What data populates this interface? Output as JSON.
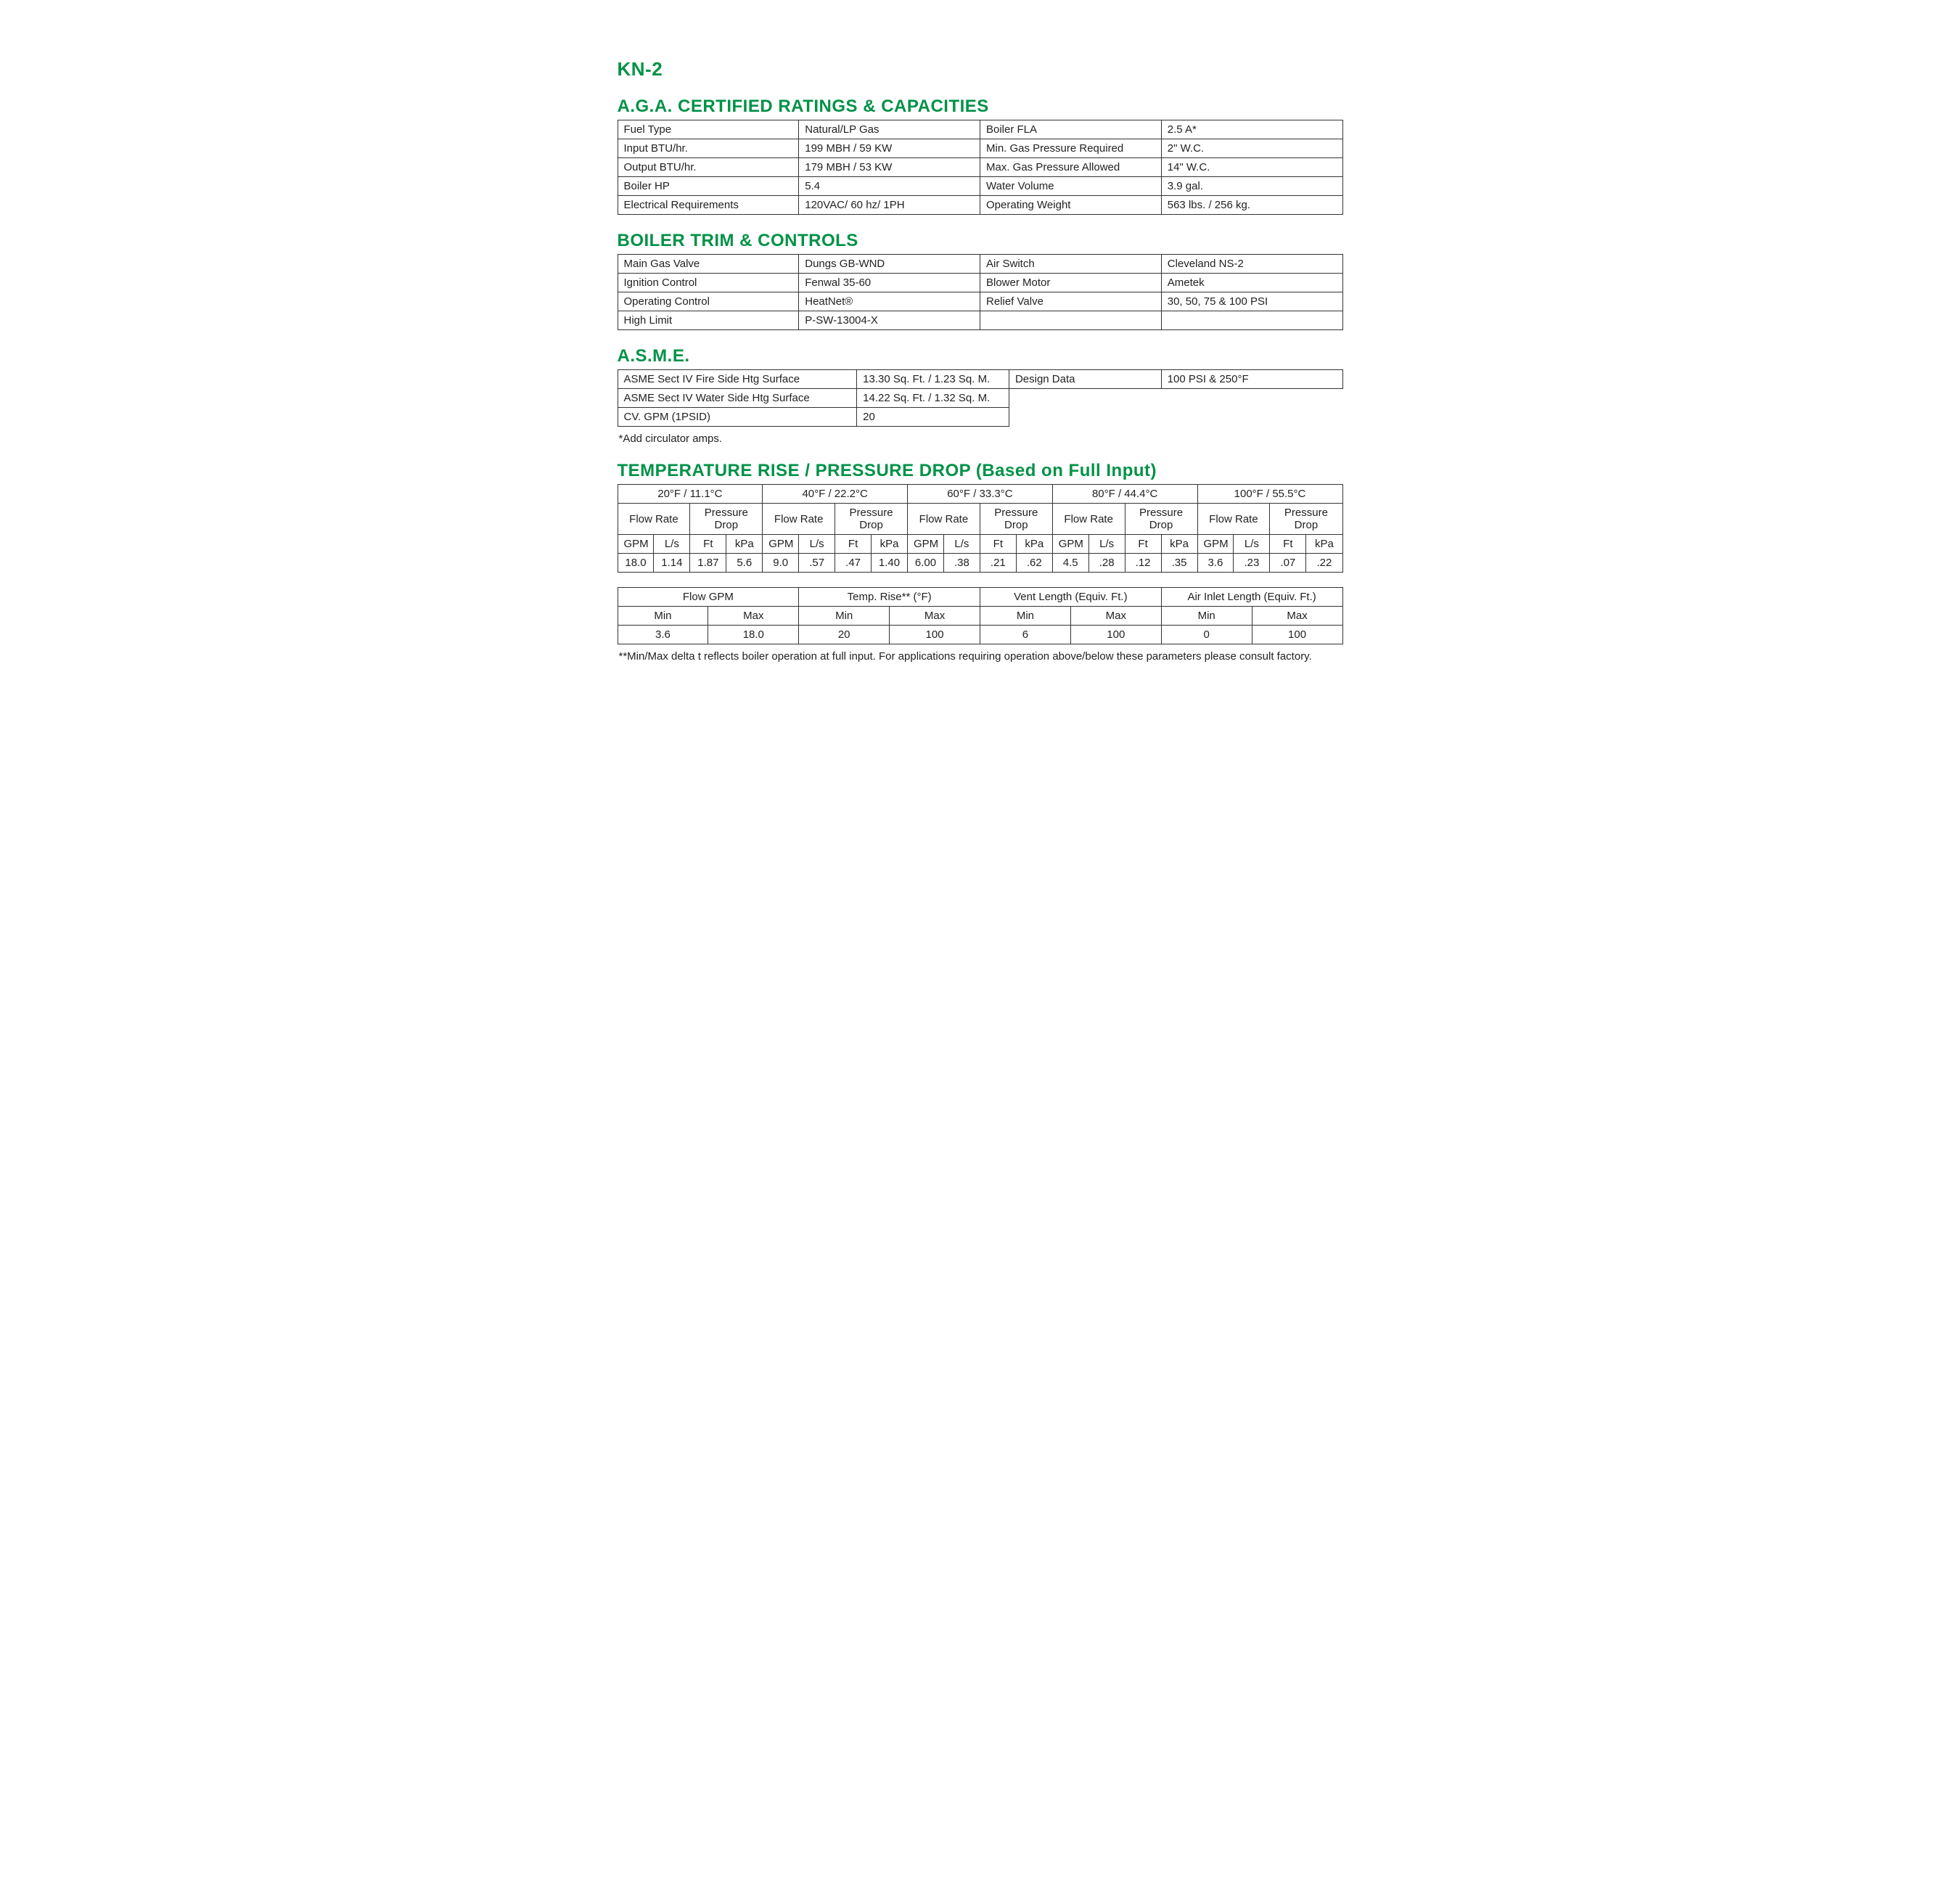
{
  "model": "KN-2",
  "sections": {
    "ratings": {
      "title": "A.G.A. CERTIFIED RATINGS & CAPACITIES",
      "rows": [
        [
          "Fuel Type",
          "Natural/LP Gas",
          "Boiler FLA",
          "2.5 A*"
        ],
        [
          "Input BTU/hr.",
          "199 MBH / 59 KW",
          "Min. Gas Pressure Required",
          "2\" W.C."
        ],
        [
          "Output BTU/hr.",
          "179 MBH / 53 KW",
          "Max. Gas Pressure Allowed",
          "14\" W.C."
        ],
        [
          "Boiler HP",
          "5.4",
          "Water Volume",
          "3.9 gal."
        ],
        [
          "Electrical Requirements",
          "120VAC/ 60 hz/ 1PH",
          "Operating Weight",
          "563 lbs. / 256 kg."
        ]
      ]
    },
    "trim": {
      "title": "BOILER TRIM & CONTROLS",
      "rows": [
        [
          "Main Gas Valve",
          "Dungs GB-WND",
          "Air Switch",
          "Cleveland NS-2"
        ],
        [
          "Ignition Control",
          "Fenwal 35-60",
          "Blower Motor",
          "Ametek"
        ],
        [
          "Operating Control",
          "HeatNet®",
          "Relief Valve",
          "30, 50, 75 & 100 PSI"
        ],
        [
          "High Limit",
          "P-SW-13004-X",
          "",
          ""
        ]
      ]
    },
    "asme": {
      "title": "A.S.M.E.",
      "row1": [
        "ASME Sect IV Fire Side Htg Surface",
        "13.30 Sq. Ft. / 1.23 Sq. M.",
        "Design Data",
        "100 PSI & 250°F"
      ],
      "row2": [
        "ASME Sect IV Water Side Htg Surface",
        "14.22 Sq. Ft. / 1.32 Sq. M."
      ],
      "row3": [
        "CV. GPM (1PSID)",
        "20"
      ],
      "note": "*Add circulator amps."
    },
    "temp": {
      "title": "TEMPERATURE RISE / PRESSURE DROP (Based on Full Input)",
      "temps": [
        "20°F / 11.1°C",
        "40°F / 22.2°C",
        "60°F / 33.3°C",
        "80°F / 44.4°C",
        "100°F / 55.5°C"
      ],
      "sub1": "Flow Rate",
      "sub2": "Pressure Drop",
      "units": [
        "GPM",
        "L/s",
        "Ft",
        "kPa"
      ],
      "data": [
        [
          "18.0",
          "1.14",
          "1.87",
          "5.6"
        ],
        [
          "9.0",
          ".57",
          ".47",
          "1.40"
        ],
        [
          "6.00",
          ".38",
          ".21",
          ".62"
        ],
        [
          "4.5",
          ".28",
          ".12",
          ".35"
        ],
        [
          "3.6",
          ".23",
          ".07",
          ".22"
        ]
      ]
    },
    "flow": {
      "headers": [
        "Flow GPM",
        "Temp. Rise** (°F)",
        "Vent Length (Equiv. Ft.)",
        "Air Inlet Length (Equiv. Ft.)"
      ],
      "minmax": [
        "Min",
        "Max"
      ],
      "data": [
        "3.6",
        "18.0",
        "20",
        "100",
        "6",
        "100",
        "0",
        "100"
      ],
      "note": "**Min/Max delta t reflects boiler operation at full input. For applications requiring operation above/below these parameters please consult factory."
    }
  }
}
